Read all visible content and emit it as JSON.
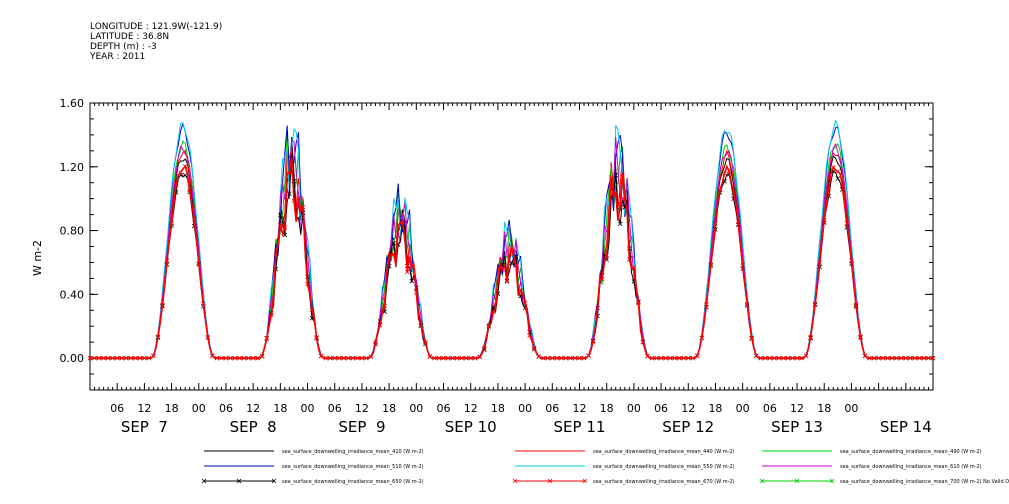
{
  "header": {
    "longitude": "LONGITUDE : 121.9W(-121.9)",
    "latitude": "LATITUDE : 36.8N",
    "depth": "DEPTH (m) : -3",
    "year": "YEAR : 2011"
  },
  "chart_data": {
    "type": "line",
    "title": "",
    "xlabel": "",
    "ylabel": "W m-2",
    "ylim": [
      -0.2,
      1.6
    ],
    "xlim_hours": [
      0,
      186
    ],
    "y_ticks": [
      "0.00",
      "0.40",
      "0.80",
      "1.20",
      "1.60"
    ],
    "hour_ticks": [
      "06",
      "12",
      "18",
      "00",
      "06",
      "12",
      "18",
      "00",
      "06",
      "12",
      "18",
      "00",
      "06",
      "12",
      "18",
      "00",
      "06",
      "12",
      "18",
      "00",
      "06",
      "12",
      "18",
      "00",
      "06",
      "12",
      "18",
      "00"
    ],
    "day_labels": [
      "SEP  7",
      "SEP  8",
      "SEP  9",
      "SEP 10",
      "SEP 11",
      "SEP 12",
      "SEP 13",
      "SEP 14"
    ],
    "grid": false,
    "legend_position": "bottom",
    "days": [
      {
        "peak_hour": 20.5,
        "peak": 1.2
      },
      {
        "peak_hour": 44.5,
        "peak": 1.1
      },
      {
        "peak_hour": 68.5,
        "peak": 0.78
      },
      {
        "peak_hour": 92.5,
        "peak": 0.62
      },
      {
        "peak_hour": 116.5,
        "peak": 1.05
      },
      {
        "peak_hour": 140.5,
        "peak": 1.18
      },
      {
        "peak_hour": 164.5,
        "peak": 1.2
      }
    ],
    "series": [
      {
        "name": "sea_surface_downwelling_irradiance_mean_410 (W m-2)",
        "color": "#000000",
        "scale": 1.05,
        "marker": false
      },
      {
        "name": "sea_surface_downwelling_irradiance_mean_440 (W m-2)",
        "color": "#ff0000",
        "scale": 1.08,
        "marker": false
      },
      {
        "name": "sea_surface_downwelling_irradiance_mean_490 (W m-2)",
        "color": "#00cc00",
        "scale": 1.12,
        "marker": false
      },
      {
        "name": "sea_surface_downwelling_irradiance_mean_510 (W m-2)",
        "color": "#0000cc",
        "scale": 1.2,
        "marker": false
      },
      {
        "name": "sea_surface_downwelling_irradiance_mean_550 (W m-2)",
        "color": "#00ccee",
        "scale": 1.22,
        "marker": false
      },
      {
        "name": "sea_surface_downwelling_irradiance_mean_610 (W m-2)",
        "color": "#cc00cc",
        "scale": 1.1,
        "marker": false
      },
      {
        "name": "sea_surface_downwelling_irradiance_mean_650 (W m-2)",
        "color": "#000000",
        "scale": 0.97,
        "marker": true
      },
      {
        "name": "sea_surface_downwelling_irradiance_mean_670 (W m-2)",
        "color": "#ff0000",
        "scale": 1.0,
        "marker": true
      },
      {
        "name": "sea_surface_downwelling_irradiance_mean_700 (W m-2) No Valid Data",
        "color": "#00cc00",
        "scale": 0,
        "marker": true
      }
    ]
  }
}
